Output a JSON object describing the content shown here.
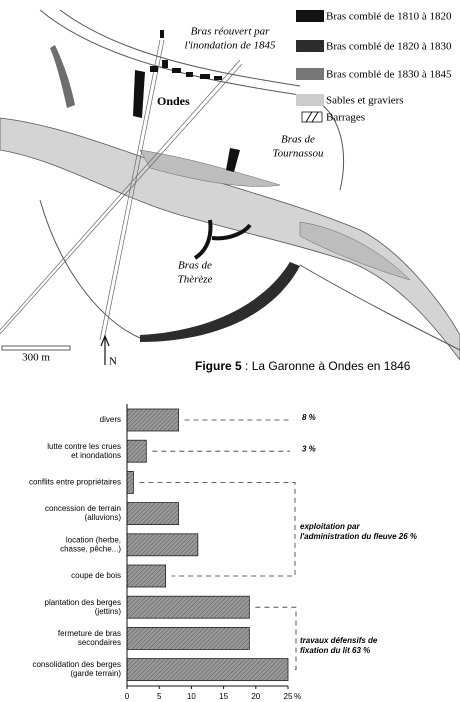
{
  "map": {
    "labels": {
      "reopened": [
        "Bras réouvert par",
        "l'inondation de 1845"
      ],
      "town": "Ondes",
      "tournassou": [
        "Bras de",
        "Tournassou"
      ],
      "thereze": [
        "Bras de",
        "Thèrèze"
      ],
      "scale": "300 m",
      "north": "N"
    },
    "legend": [
      "Bras comblé de 1810 à 1820",
      "Bras comblé de 1820 à 1830",
      "Bras comblé de 1830 à 1845",
      "Sables et graviers",
      "Barrages"
    ],
    "caption": {
      "label": "Figure 5",
      "text": " : La Garonne à Ondes en 1846"
    }
  },
  "chart_data": {
    "type": "hbar",
    "categories": [
      [
        "divers"
      ],
      [
        "lutte contre les crues",
        "et inondations"
      ],
      [
        "conflits entre propriétaires"
      ],
      [
        "concession de terrain",
        "(alluvions)"
      ],
      [
        "location (herbe,",
        "chasse, pêche...)"
      ],
      [
        "coupe de bois"
      ],
      [
        "plantation des berges",
        "(jettins)"
      ],
      [
        "fermeture de bras",
        "secondaires"
      ],
      [
        "consolidation des berges",
        "(garde terrain)"
      ]
    ],
    "values": [
      8,
      3,
      1,
      8,
      11,
      6,
      19,
      19,
      25
    ],
    "color": "#8a8a8a",
    "xlim": [
      0,
      25
    ],
    "xticks": [
      0,
      5,
      10,
      15,
      20,
      25
    ],
    "x_unit": "%",
    "annotations": [
      "8 %",
      "3 %",
      [
        "exploitation par",
        "l'administration du fleuve 26 %"
      ],
      [
        "travaux défensifs de",
        "fixation du lit 63 %"
      ]
    ]
  }
}
